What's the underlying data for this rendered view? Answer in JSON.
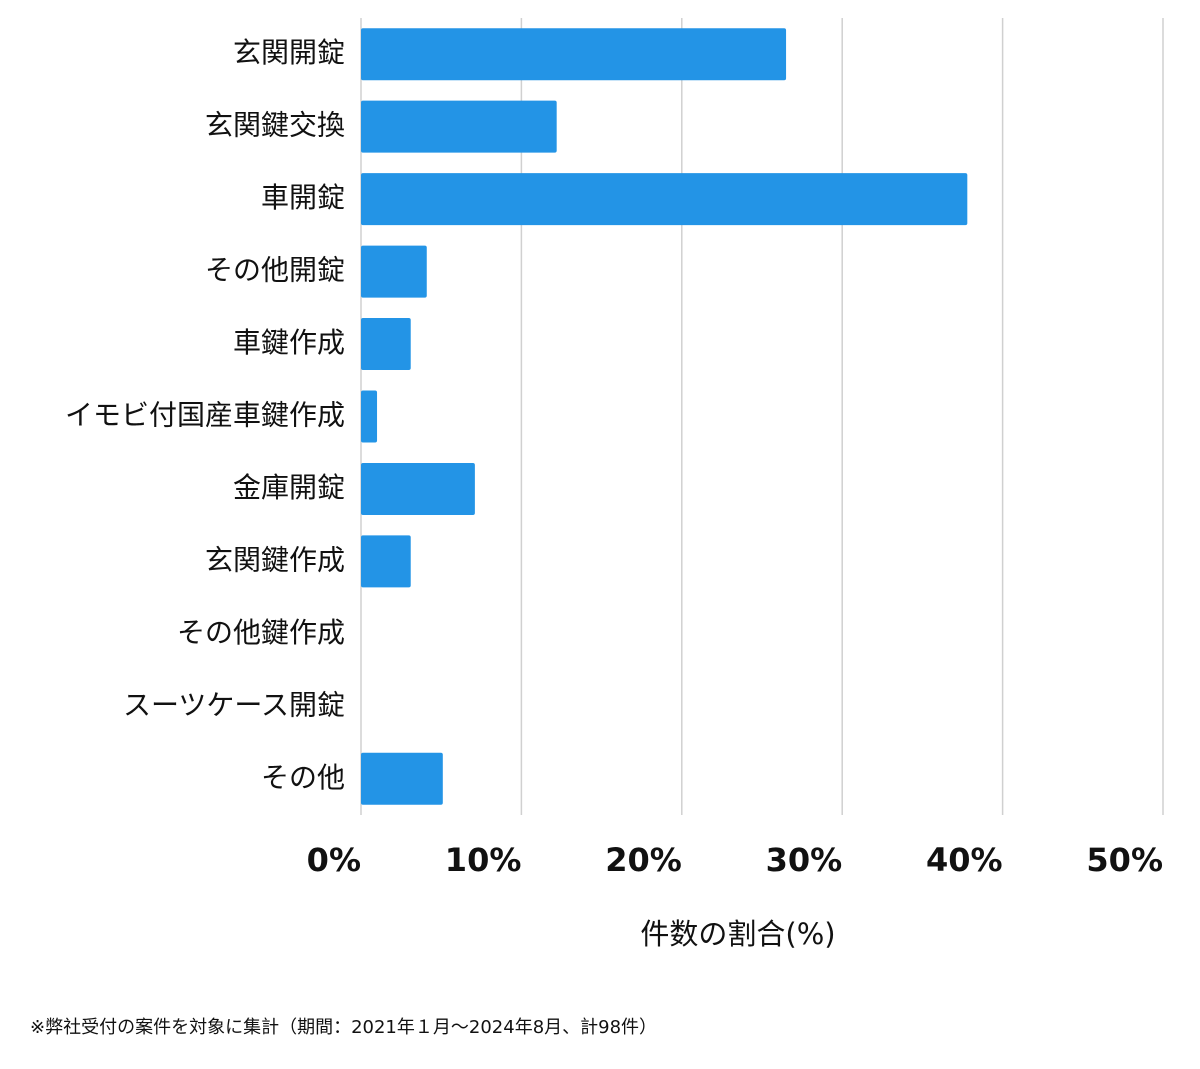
{
  "chart_data": {
    "type": "hbar",
    "categories": [
      "玄関開錠",
      "玄関鍵交換",
      "車開錠",
      "その他開錠",
      "車鍵作成",
      "イモビ付国産車鍵作成",
      "金庫開錠",
      "玄関鍵作成",
      "その他鍵作成",
      "スーツケース開錠",
      "その他"
    ],
    "values": [
      26.5,
      12.2,
      37.8,
      4.1,
      3.1,
      1.0,
      7.1,
      3.1,
      0,
      0,
      5.1
    ],
    "color": "#2394e6",
    "xlim": [
      0,
      50
    ],
    "xticks": [
      {
        "value": 0,
        "label": "0%"
      },
      {
        "value": 10,
        "label": "10%"
      },
      {
        "value": 20,
        "label": "20%"
      },
      {
        "value": 30,
        "label": "30%"
      },
      {
        "value": 40,
        "label": "40%"
      },
      {
        "value": 50,
        "label": "50%"
      }
    ],
    "x_label": "件数の割合(%)",
    "grid": true,
    "note": "※弊社受付の案件を対象に集計（期間：2021年１月～2024年8月、計98件）"
  }
}
